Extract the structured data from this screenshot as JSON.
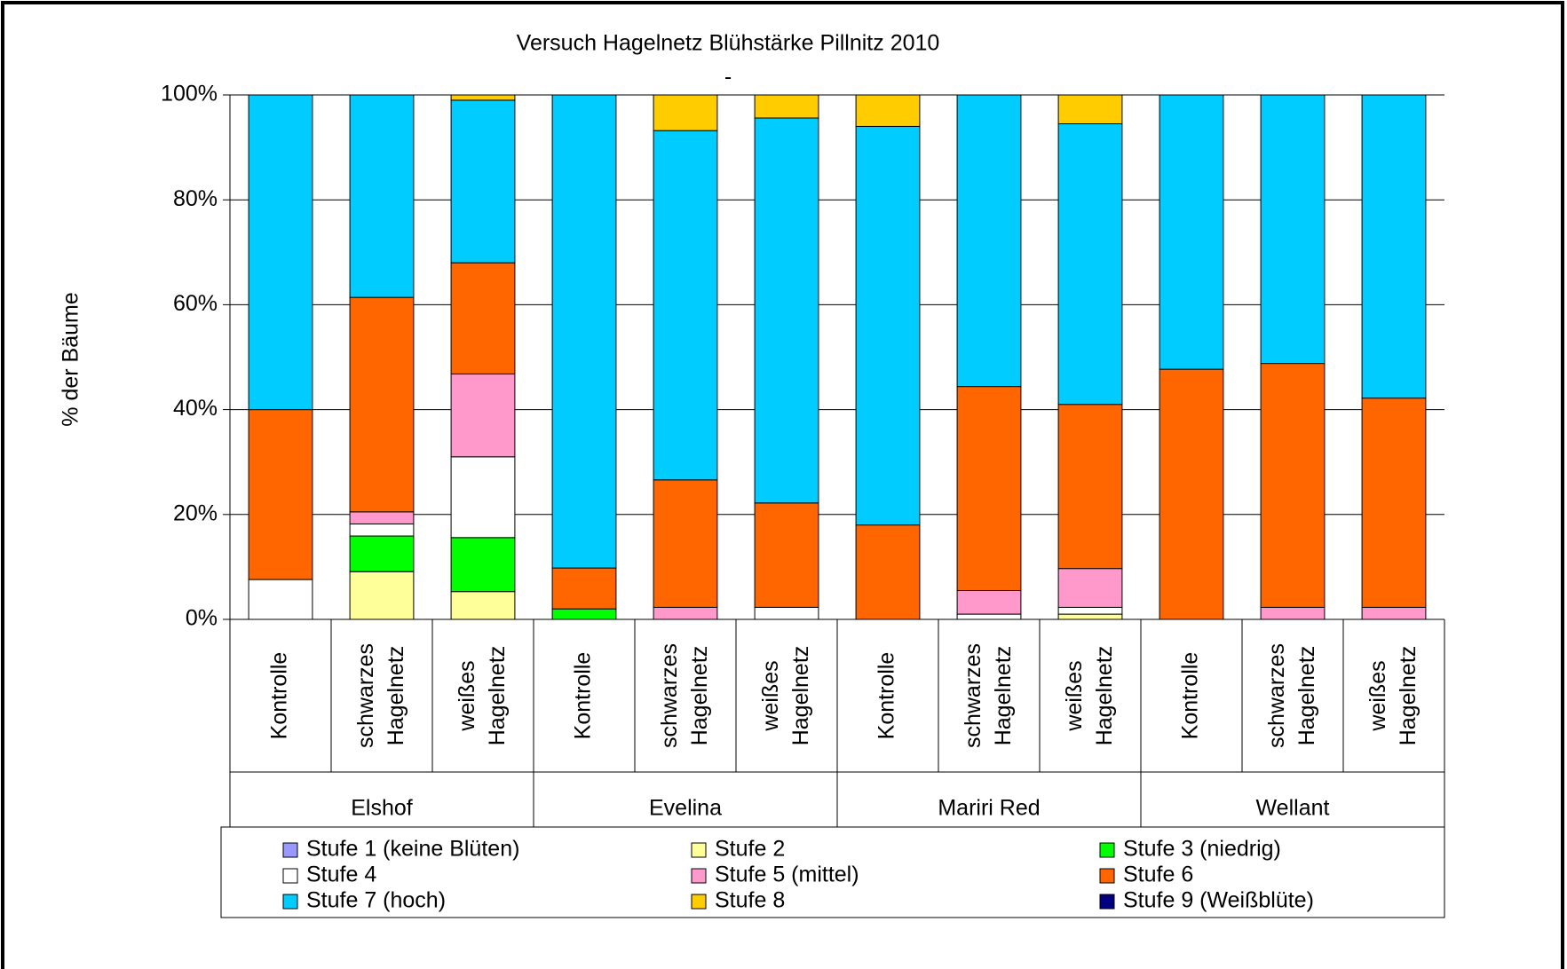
{
  "chart_data": {
    "type": "stacked_bar_100",
    "title": "Versuch Hagelnetz Blühstärke Pillnitz 2010",
    "subtitle": "-",
    "y_label": "% der Bäume",
    "categories": [
      "Kontrolle",
      "schwarzes Hagelnetz",
      "weißes Hagelnetz",
      "Kontrolle",
      "schwarzes Hagelnetz",
      "weißes Hagelnetz",
      "Kontrolle",
      "schwarzes Hagelnetz",
      "weißes Hagelnetz",
      "Kontrolle",
      "schwarzes Hagelnetz",
      "weißes Hagelnetz"
    ],
    "groups": [
      "Elshof",
      "Evelina",
      "Mariri Red",
      "Wellant"
    ],
    "ylim": [
      0,
      100
    ],
    "yticks": [
      {
        "value": 0,
        "label": "0%"
      },
      {
        "value": 20,
        "label": "20%"
      },
      {
        "value": 40,
        "label": "40%"
      },
      {
        "value": 60,
        "label": "60%"
      },
      {
        "value": 80,
        "label": "80%"
      },
      {
        "value": 100,
        "label": "100%"
      }
    ],
    "grid": true,
    "legend": "bottom",
    "series": [
      {
        "name": "Stufe 1 (keine Blüten)",
        "color": "#9999ff",
        "values": [
          0,
          0,
          0,
          0,
          0,
          0,
          0,
          0,
          0,
          0,
          0,
          0
        ]
      },
      {
        "name": "Stufe 2",
        "color": "#ffff99",
        "values": [
          0,
          9.1,
          5.3,
          0,
          0,
          0,
          0,
          0,
          1,
          0,
          0,
          0
        ]
      },
      {
        "name": "Stufe 3 (niedrig)",
        "color": "#00ff00",
        "values": [
          0,
          6.8,
          10.3,
          2,
          0,
          0,
          0,
          0,
          0,
          0,
          0,
          0
        ]
      },
      {
        "name": "Stufe 4",
        "color": "#ffffff",
        "values": [
          7.6,
          2.3,
          15.4,
          0,
          0,
          2.3,
          0,
          1,
          1.3,
          0,
          0,
          0
        ]
      },
      {
        "name": "Stufe 5 (mittel)",
        "color": "#ff99cc",
        "values": [
          0,
          2.3,
          15.8,
          0,
          2.3,
          0,
          0,
          4.5,
          7.4,
          0,
          2.3,
          2.3
        ]
      },
      {
        "name": "Stufe 6",
        "color": "#ff6600",
        "values": [
          32.4,
          40.9,
          21.2,
          7.8,
          24.3,
          19.9,
          18,
          38.9,
          31.3,
          47.7,
          46.5,
          39.9
        ]
      },
      {
        "name": "Stufe 7 (hoch)",
        "color": "#00ccff",
        "values": [
          60,
          38.6,
          31,
          90.2,
          66.6,
          73.4,
          76,
          55.6,
          53.5,
          52.3,
          51.2,
          57.8
        ]
      },
      {
        "name": "Stufe 8",
        "color": "#ffcc00",
        "values": [
          0,
          0,
          1,
          0,
          6.8,
          4.4,
          6,
          0,
          5.5,
          0,
          0,
          0
        ]
      },
      {
        "name": "Stufe 9 (Weißblüte)",
        "color": "#000080",
        "values": [
          0,
          0,
          0,
          0,
          0,
          0,
          0,
          0,
          0,
          0,
          0,
          0
        ]
      }
    ]
  }
}
